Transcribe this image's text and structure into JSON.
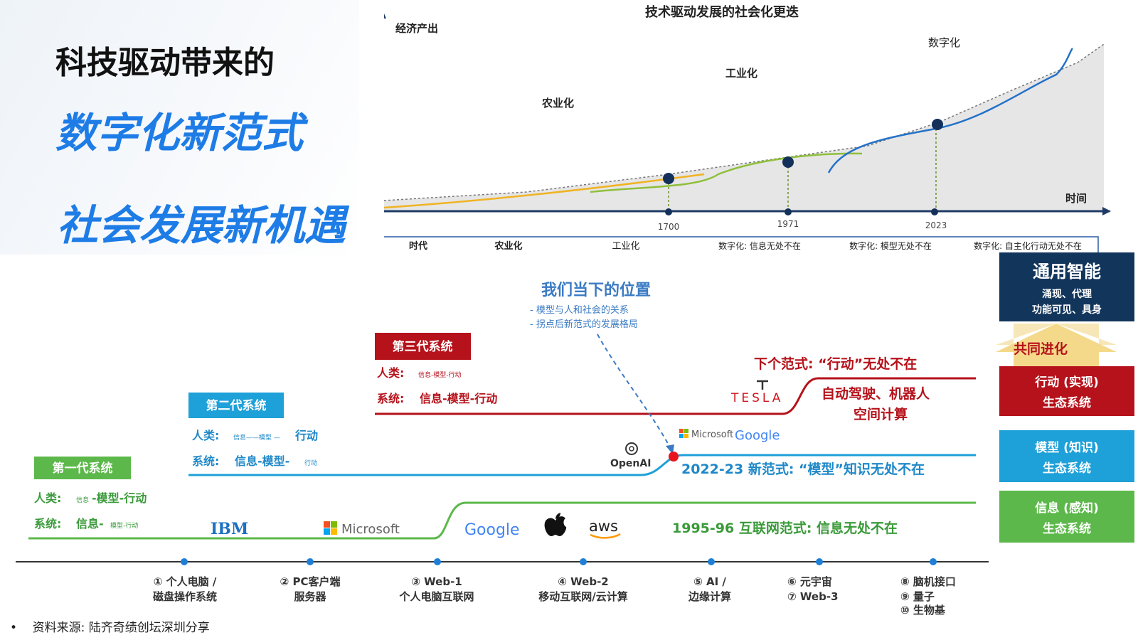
{
  "headline": "科技驱动带来的",
  "subtitle_1": "数字化新范式",
  "subtitle_2": "社会发展新机遇",
  "source": "资料来源: 陆齐奇绩创坛深圳分享",
  "top_chart": {
    "title": "技术驱动发展的社会化更迭",
    "y_label": "经济产出",
    "x_label": "时间",
    "phase_labels": [
      "农业化",
      "工业化",
      "数字化"
    ],
    "year_labels": [
      "1700",
      "1971",
      "2023"
    ],
    "table_headers": [
      "时代",
      "农业化",
      "工业化",
      "数字化: 信息无处不在",
      "数字化: 模型无处不在",
      "数字化: 自主化行动无处不在"
    ]
  },
  "diagram": {
    "position_title": "我们当下的位置",
    "position_bullets": [
      "- 模型与人和社会的关系",
      "- 拐点后新范式的发展格局"
    ],
    "gen1": {
      "badge": "第一代系统",
      "human_label": "人类:",
      "human_small": "信息",
      "human_main": "-模型-行动",
      "system_label": "系统:",
      "system_main": "信息-",
      "system_small": "模型-行动"
    },
    "gen2": {
      "badge": "第二代系统",
      "human_label": "人类:",
      "human_small": "信息——模型 —",
      "human_main": "行动",
      "system_label": "系统:",
      "system_main": "信息-模型-",
      "system_small": "行动"
    },
    "gen3": {
      "badge": "第三代系统",
      "human_label": "人类:",
      "human_small": "信息-模型-行动",
      "system_label": "系统:",
      "system_main": "信息-模型-行动"
    },
    "paradigm_next": "下个范式: “行动”无处不在",
    "paradigm_next_detail_1": "自动驾驶、机器人",
    "paradigm_next_detail_2": "空间计算",
    "paradigm_2022": "2022-23 新范式: “模型”知识无处不在",
    "paradigm_1995": "1995-96 互联网范式: 信息无处不在",
    "logos": {
      "ibm": "IBM",
      "microsoft": "Microsoft",
      "google": "Google",
      "aws": "aws",
      "openai": "OpenAI",
      "tesla": "TESLA",
      "ms_small": "Microsoft",
      "google_small": "Google"
    },
    "milestones": [
      {
        "l1": "① 个人电脑 /",
        "l2": "磁盘操作系统"
      },
      {
        "l1": "② PC客户端",
        "l2": "服务器"
      },
      {
        "l1": "③ Web-1",
        "l2": "个人电脑互联网"
      },
      {
        "l1": "④ Web-2",
        "l2": "移动互联网/云计算"
      },
      {
        "l1": "⑤ AI /",
        "l2": "边缘计算"
      },
      {
        "l1": "⑥ 元宇宙",
        "l2": "⑦ Web-3"
      },
      {
        "l1": "⑧ 脑机接口",
        "l2": "⑨ 量子",
        "l3": "⑩ 生物基"
      }
    ],
    "stack": {
      "top_1": "通用智能",
      "top_2": "涌现、代理",
      "top_3": "功能可见、具身",
      "arrow_label": "共同进化",
      "action_1": "行动 (实现)",
      "action_2": "生态系统",
      "model_1": "模型 (知识)",
      "model_2": "生态系统",
      "info_1": "信息 (感知)",
      "info_2": "生态系统"
    }
  },
  "colors": {
    "blue_accent": "#1e7ce6",
    "green": "#5cb84a",
    "cyan": "#1ea0d8",
    "red": "#b5121b",
    "navy": "#12355b",
    "yellow": "#f5c542"
  }
}
